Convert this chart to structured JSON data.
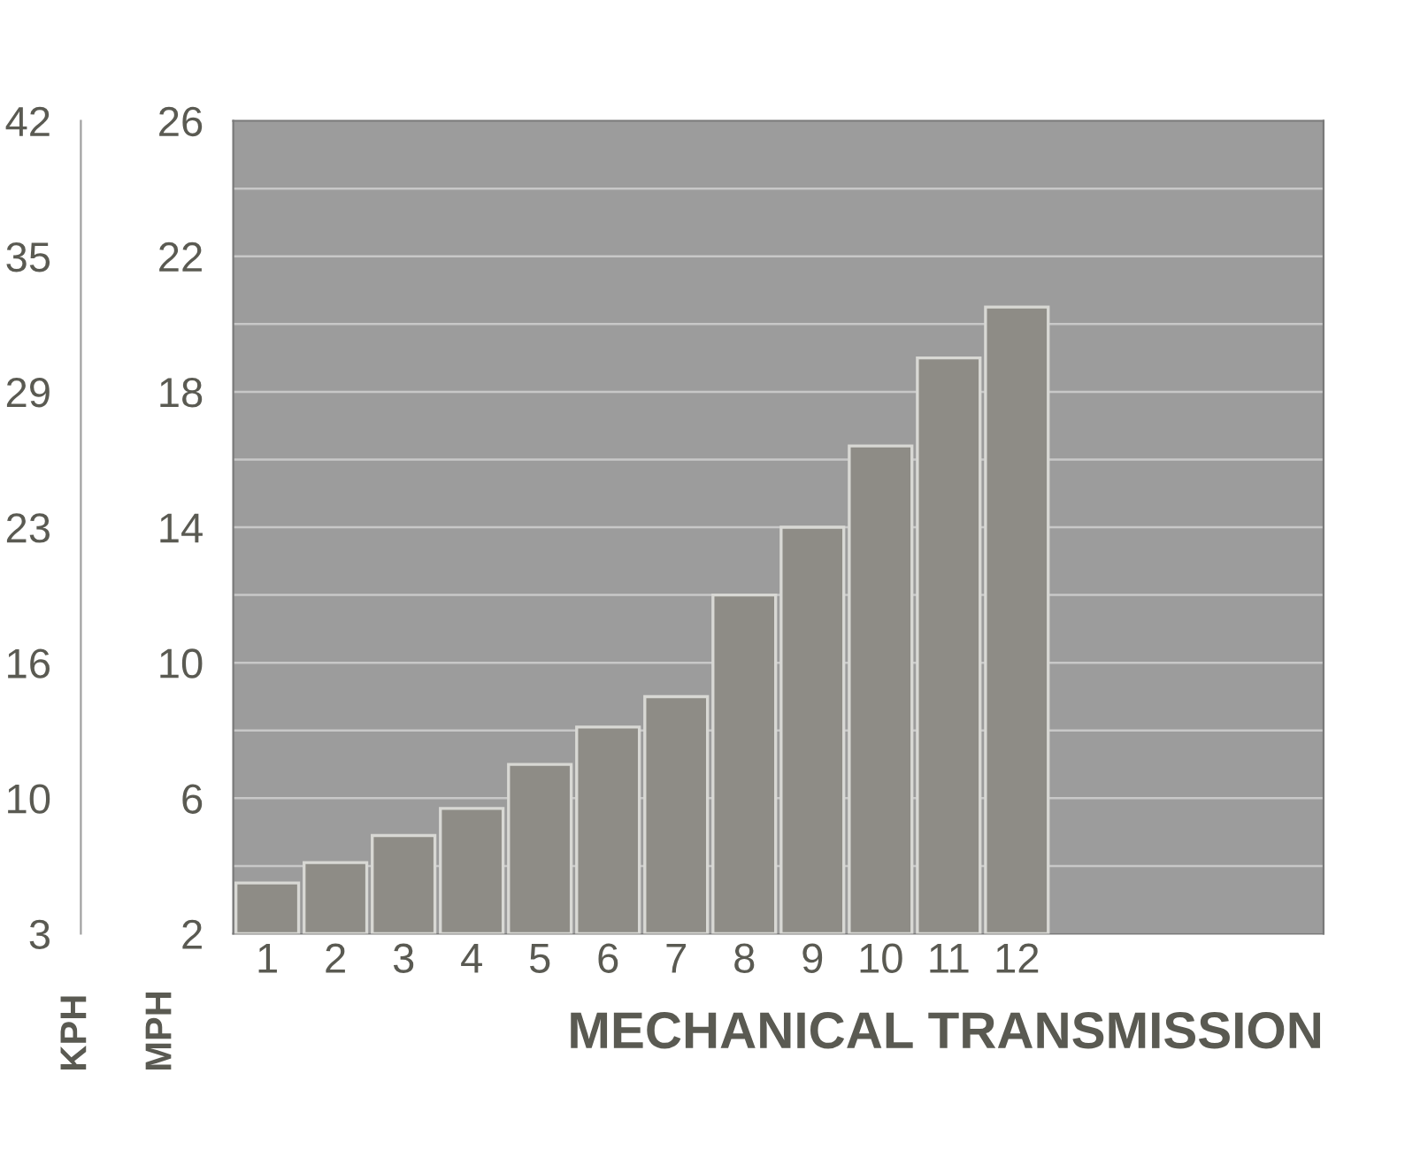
{
  "chart_data": {
    "type": "bar",
    "categories": [
      "1",
      "2",
      "3",
      "4",
      "5",
      "6",
      "7",
      "8",
      "9",
      "10",
      "11",
      "12",
      null,
      null,
      null,
      null
    ],
    "values": [
      3.5,
      4.1,
      4.9,
      5.7,
      7.0,
      8.1,
      9.0,
      12.0,
      14.0,
      16.4,
      19.0,
      20.5,
      null,
      null,
      null,
      null
    ],
    "color": "#8e8c86",
    "xlabel": "MECHANICAL TRANSMISSION",
    "ylabel": "MPH",
    "y2label": "KPH",
    "ylim": [
      2,
      26
    ],
    "yticks": [
      2,
      {
        "value": 4,
        "label": null
      },
      6,
      {
        "value": 8,
        "label": null
      },
      10,
      {
        "value": 12,
        "label": null
      },
      14,
      {
        "value": 16,
        "label": null
      },
      18,
      {
        "value": 20,
        "label": null
      },
      22,
      {
        "value": 24,
        "label": null
      },
      26
    ],
    "y2lim": [
      3.22,
      41.84
    ],
    "y2ticks": [
      {
        "value": 3.22,
        "label": "3"
      },
      {
        "value": 9.66,
        "label": "10"
      },
      {
        "value": 16.09,
        "label": "16"
      },
      {
        "value": 22.53,
        "label": "23"
      },
      {
        "value": 28.97,
        "label": "29"
      },
      {
        "value": 35.4,
        "label": "35"
      },
      {
        "value": 41.84,
        "label": "42"
      }
    ],
    "grid": true
  }
}
